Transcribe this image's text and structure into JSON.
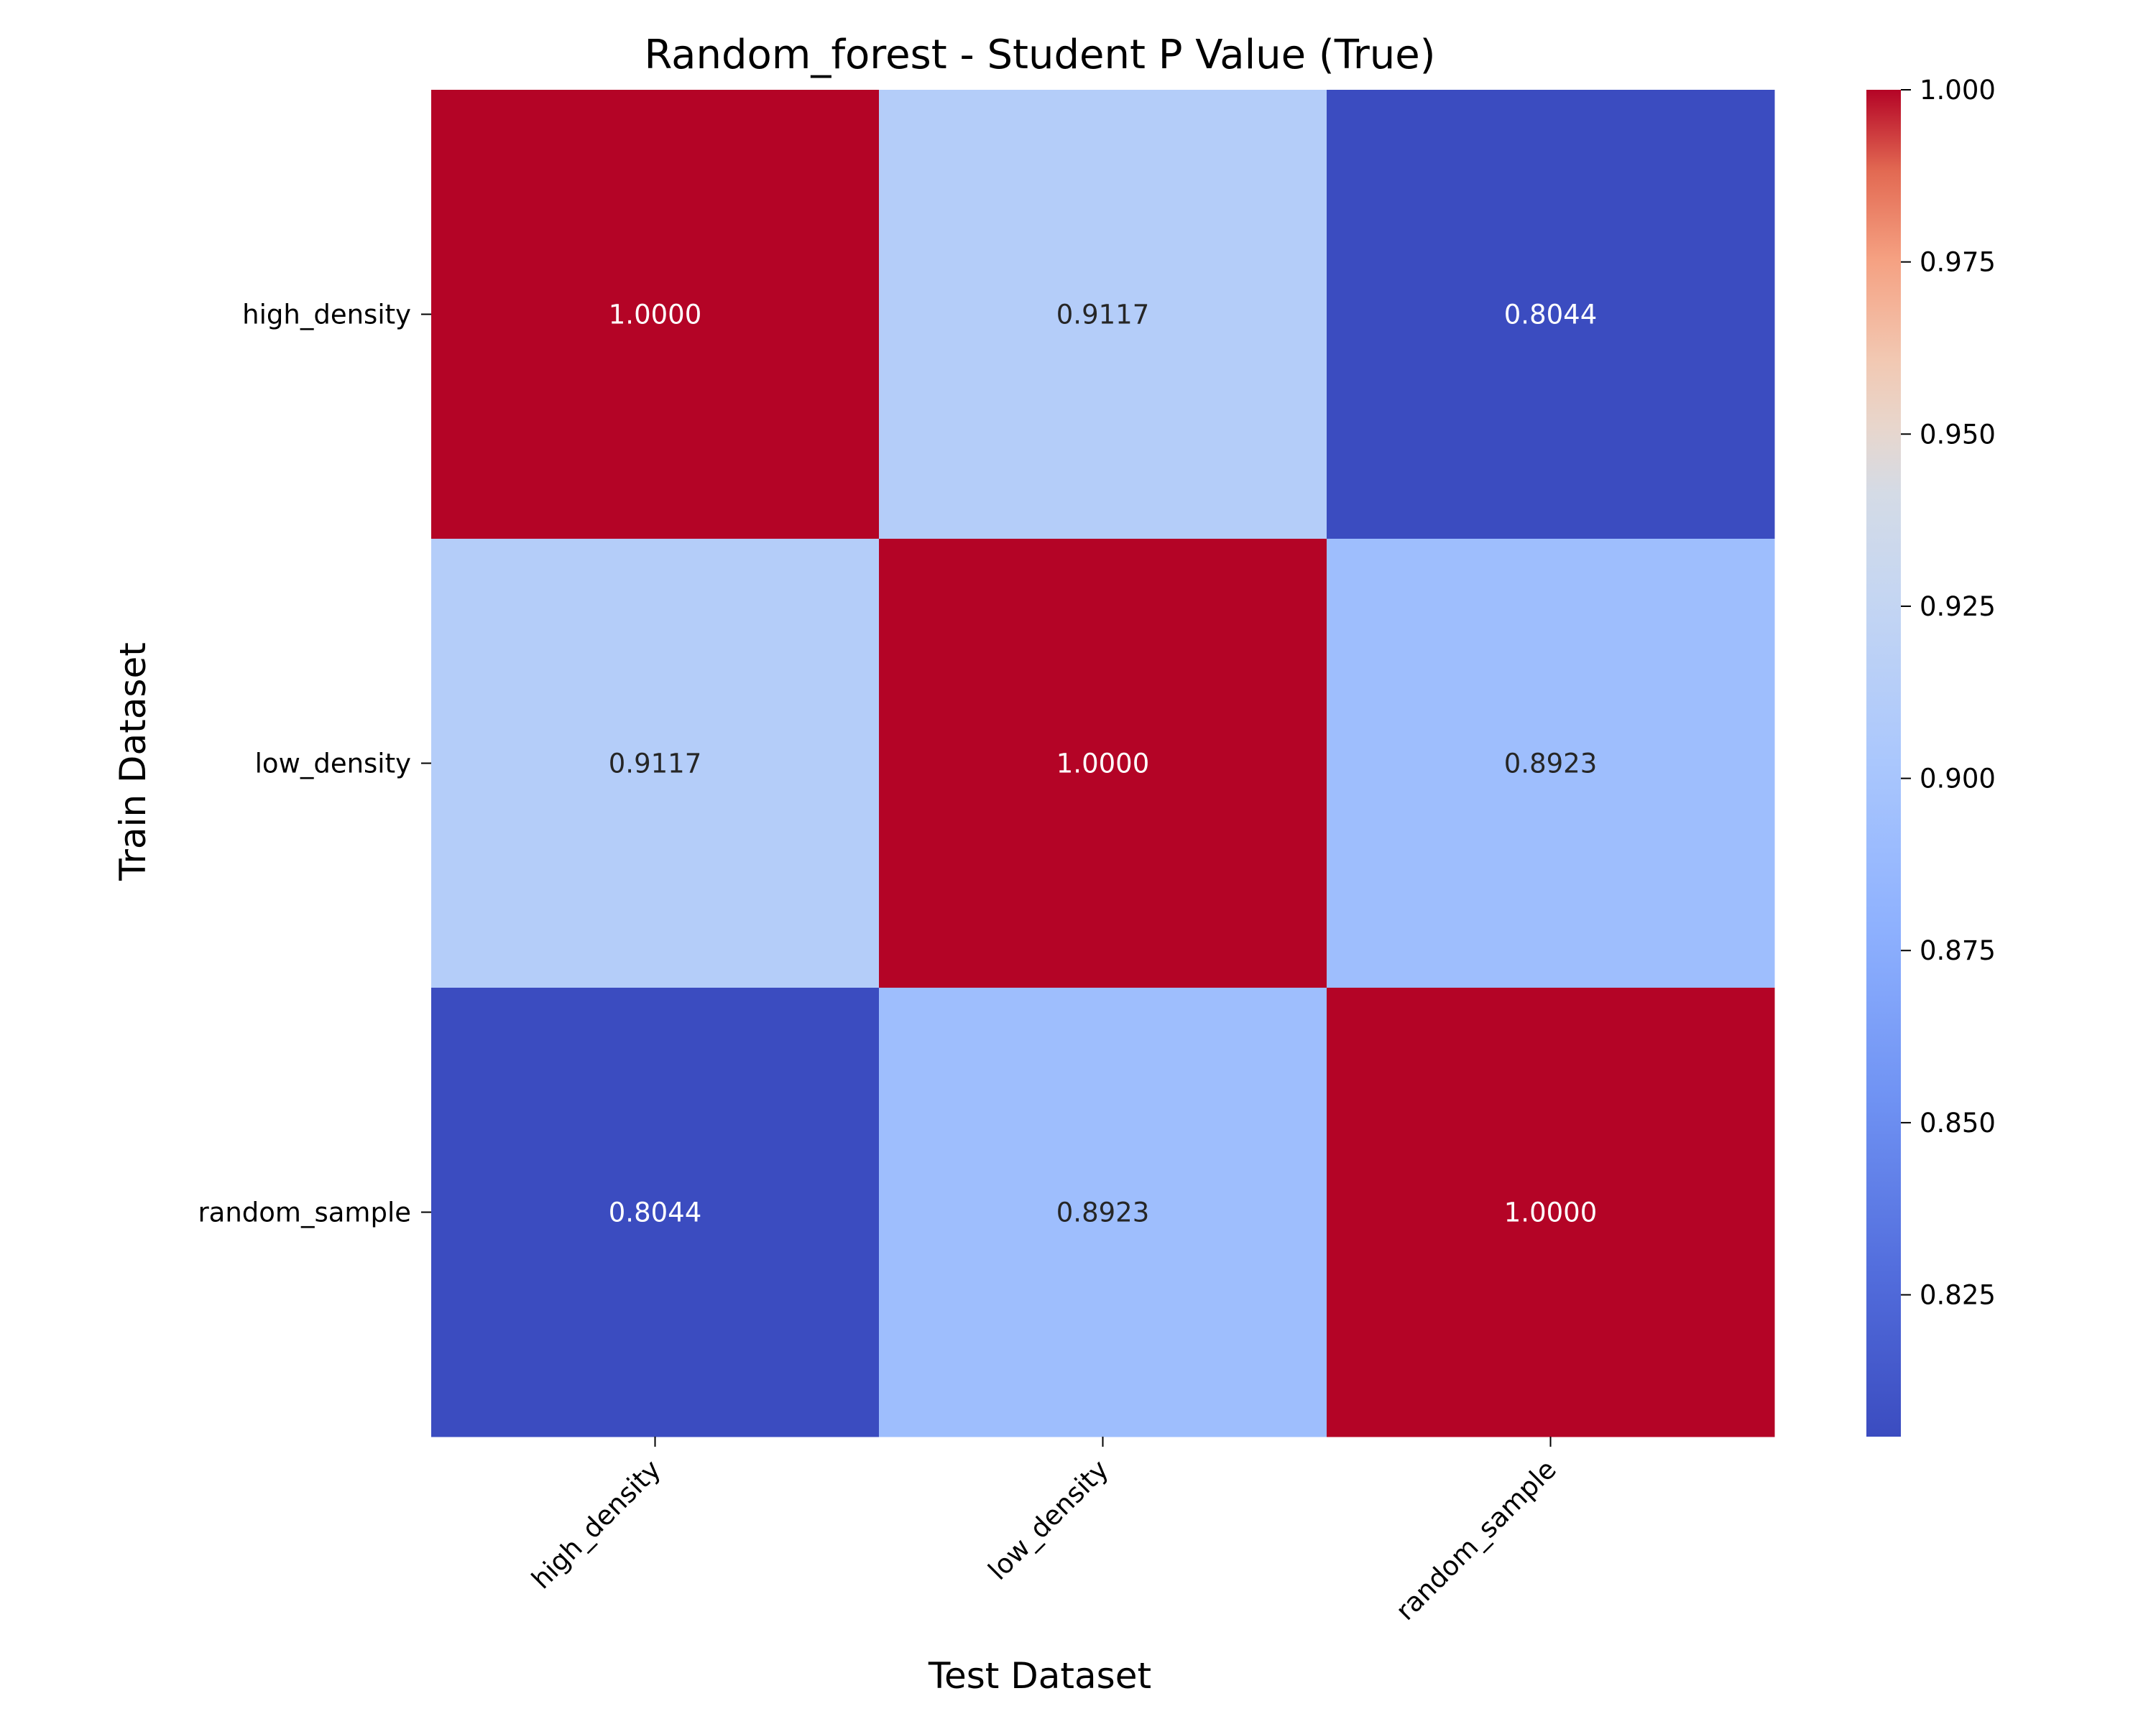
{
  "chart_data": {
    "type": "heatmap",
    "title": "Random_forest - Student P Value (True)",
    "xlabel": "Test Dataset",
    "ylabel": "Train Dataset",
    "x_categories": [
      "high_density",
      "low_density",
      "random_sample"
    ],
    "y_categories": [
      "high_density",
      "low_density",
      "random_sample"
    ],
    "values": [
      [
        1.0,
        0.9117,
        0.8044
      ],
      [
        0.9117,
        1.0,
        0.8923
      ],
      [
        0.8044,
        0.8923,
        1.0
      ]
    ],
    "cell_labels": [
      [
        "1.0000",
        "0.9117",
        "0.8044"
      ],
      [
        "0.9117",
        "1.0000",
        "0.8923"
      ],
      [
        "0.8044",
        "0.8923",
        "1.0000"
      ]
    ],
    "colormap": "coolwarm",
    "colorbar": {
      "vmin": 0.8044,
      "vmax": 1.0,
      "ticks": [
        0.825,
        0.85,
        0.875,
        0.9,
        0.925,
        0.95,
        0.975,
        1.0
      ],
      "tick_labels": [
        "0.825",
        "0.850",
        "0.875",
        "0.900",
        "0.925",
        "0.950",
        "0.975",
        "1.000"
      ]
    }
  }
}
